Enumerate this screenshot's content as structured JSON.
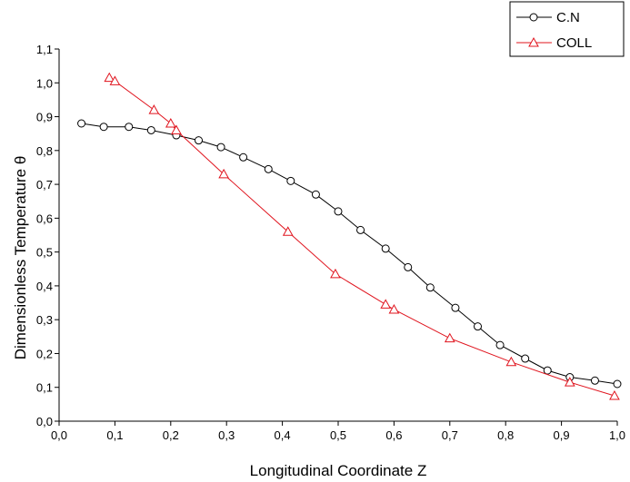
{
  "chart_data": {
    "type": "line",
    "xlabel": "Longitudinal Coordinate  Z",
    "ylabel": "Dimensionless Temperature θ",
    "xlim": [
      0.0,
      1.0
    ],
    "ylim": [
      0.0,
      1.1
    ],
    "x_ticks": [
      "0,0",
      "0,1",
      "0,2",
      "0,3",
      "0,4",
      "0,5",
      "0,6",
      "0,7",
      "0,8",
      "0,9",
      "1,0"
    ],
    "y_ticks": [
      "0,0",
      "0,1",
      "0,2",
      "0,3",
      "0,4",
      "0,5",
      "0,6",
      "0,7",
      "0,8",
      "0,9",
      "1,0",
      "1,1"
    ],
    "grid": false,
    "legend_position": "top-right",
    "series": [
      {
        "name": "C.N",
        "marker": "circle",
        "color": "#000000",
        "x": [
          0.04,
          0.08,
          0.125,
          0.165,
          0.21,
          0.25,
          0.29,
          0.33,
          0.375,
          0.415,
          0.46,
          0.5,
          0.54,
          0.585,
          0.625,
          0.665,
          0.71,
          0.75,
          0.79,
          0.835,
          0.875,
          0.915,
          0.96,
          1.0
        ],
        "y": [
          0.88,
          0.87,
          0.87,
          0.86,
          0.845,
          0.83,
          0.81,
          0.78,
          0.745,
          0.71,
          0.67,
          0.62,
          0.565,
          0.51,
          0.455,
          0.395,
          0.335,
          0.28,
          0.225,
          0.185,
          0.15,
          0.13,
          0.12,
          0.11
        ]
      },
      {
        "name": "COLL",
        "marker": "triangle",
        "color": "#e0141e",
        "x": [
          0.09,
          0.1,
          0.17,
          0.2,
          0.21,
          0.295,
          0.41,
          0.495,
          0.585,
          0.6,
          0.7,
          0.81,
          0.915,
          0.995
        ],
        "y": [
          1.015,
          1.005,
          0.92,
          0.88,
          0.86,
          0.73,
          0.56,
          0.435,
          0.345,
          0.33,
          0.245,
          0.175,
          0.115,
          0.075
        ]
      }
    ]
  }
}
